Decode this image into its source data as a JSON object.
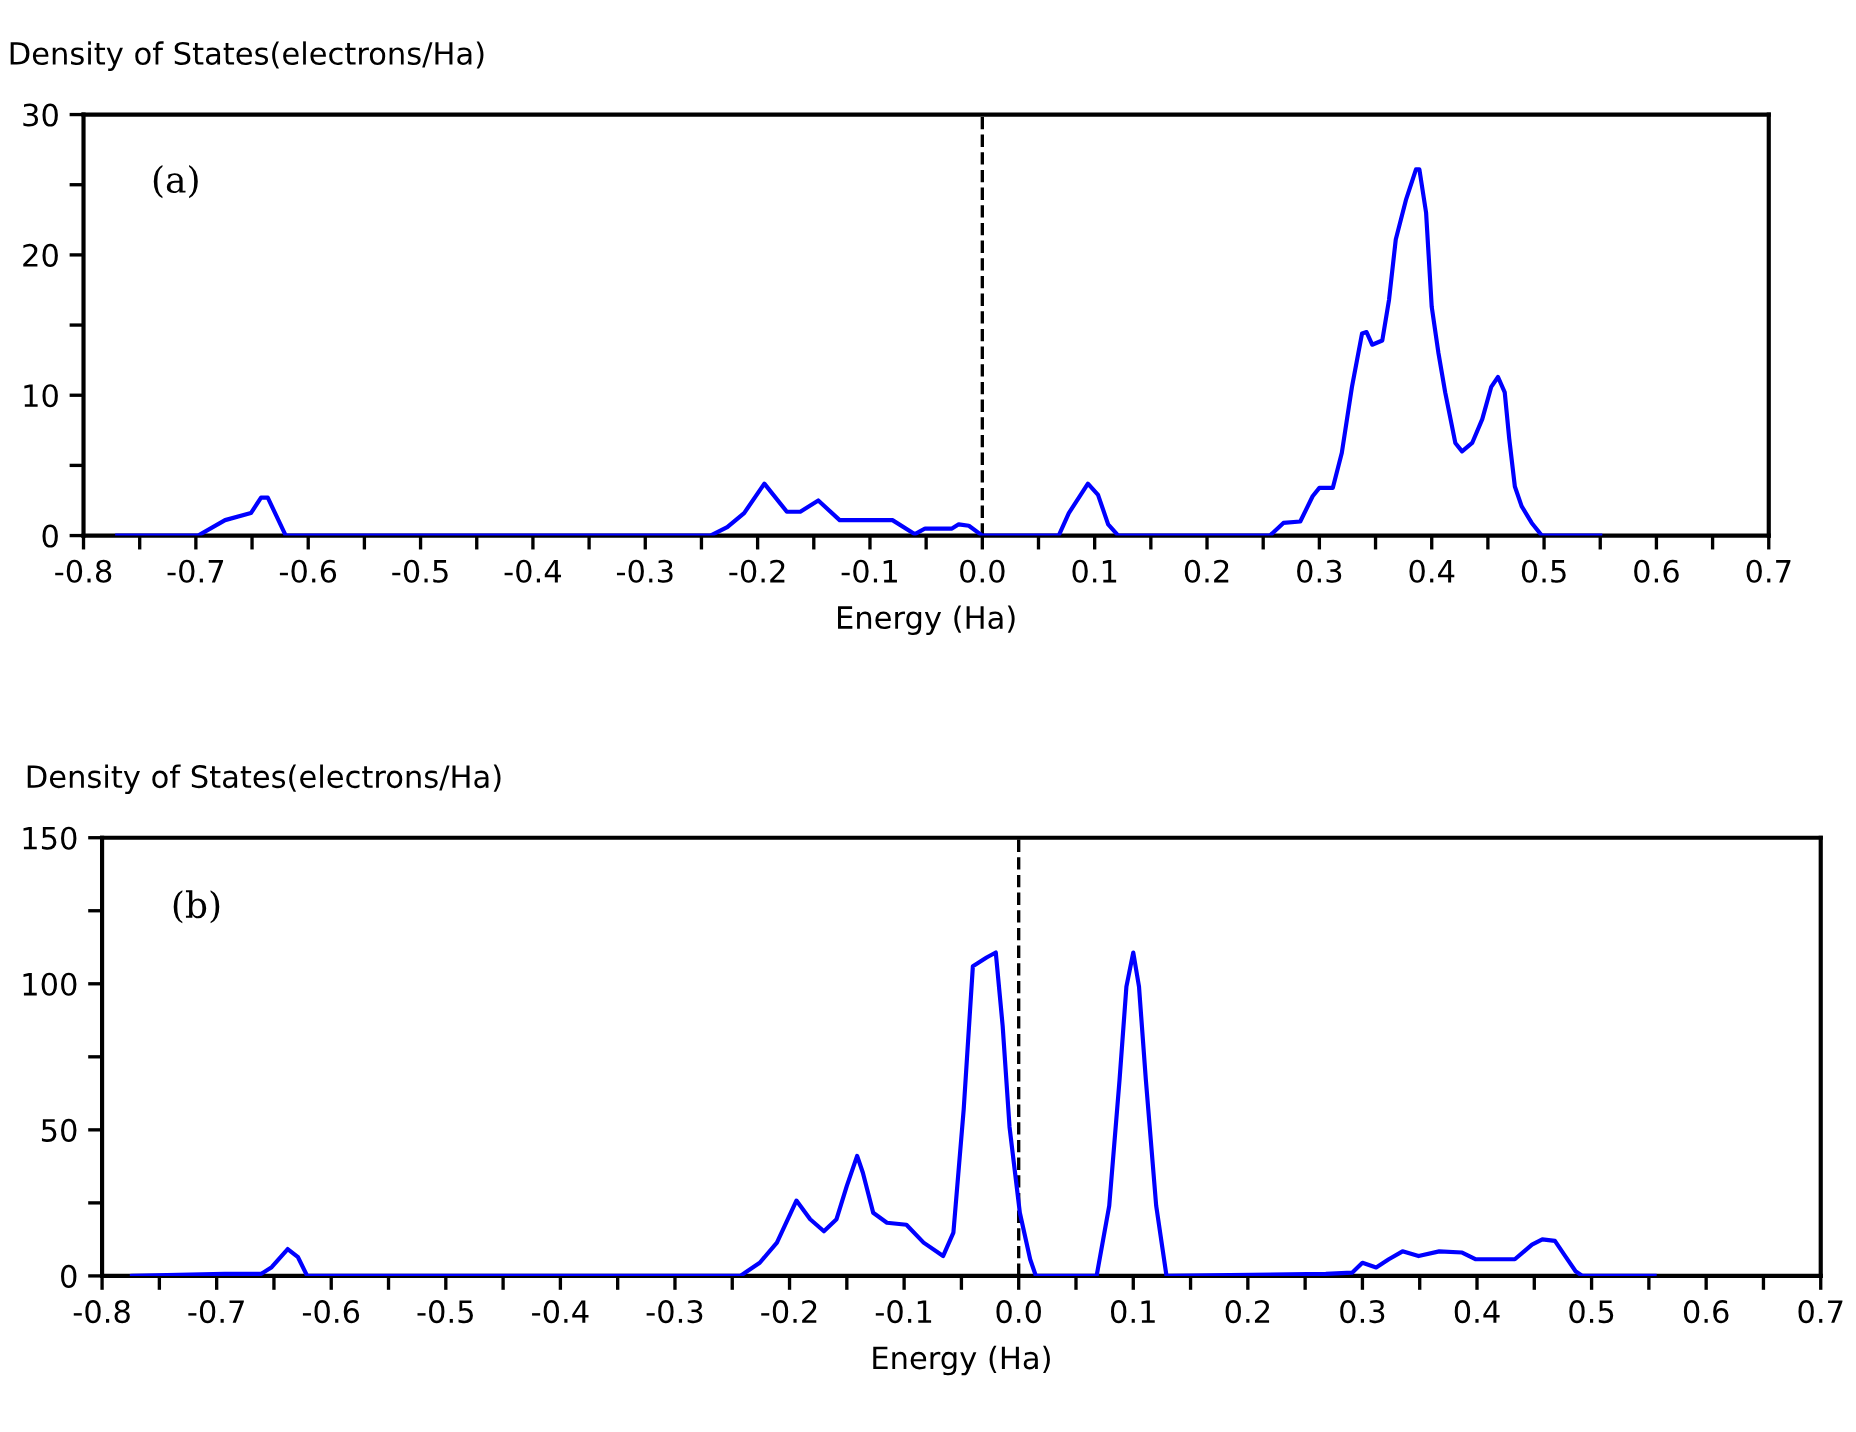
{
  "chart_data": [
    {
      "type": "line",
      "title": "Density of States(electrons/Ha)",
      "xlabel": "Energy (Ha)",
      "annotations": [
        "(a)"
      ],
      "series": [
        {
          "color": "#0000ff",
          "x": [
            -0.77,
            -0.698,
            -0.674,
            -0.651,
            -0.642,
            -0.636,
            -0.62,
            -0.242,
            -0.227,
            -0.212,
            -0.194,
            -0.174,
            -0.162,
            -0.146,
            -0.127,
            -0.08,
            -0.06,
            -0.051,
            -0.027,
            -0.021,
            -0.012,
            0.0,
            0.068,
            0.077,
            0.094,
            0.103,
            0.112,
            0.121,
            0.256,
            0.268,
            0.283,
            0.294,
            0.3,
            0.312,
            0.32,
            0.329,
            0.338,
            0.342,
            0.347,
            0.356,
            0.362,
            0.368,
            0.377,
            0.386,
            0.389,
            0.395,
            0.4,
            0.406,
            0.412,
            0.421,
            0.427,
            0.436,
            0.445,
            0.453,
            0.459,
            0.465,
            0.469,
            0.474,
            0.48,
            0.489,
            0.498,
            0.55
          ],
          "values": [
            0,
            0,
            1.1,
            1.6,
            2.7,
            2.7,
            0,
            0,
            0.6,
            1.6,
            3.7,
            1.7,
            1.7,
            2.5,
            1.1,
            1.1,
            0.1,
            0.5,
            0.5,
            0.8,
            0.7,
            0,
            0,
            1.6,
            3.7,
            2.9,
            0.8,
            0,
            0,
            0.9,
            1.0,
            2.8,
            3.4,
            3.4,
            5.9,
            10.6,
            14.4,
            14.5,
            13.6,
            13.9,
            16.8,
            21.1,
            23.9,
            26.1,
            26.1,
            23.0,
            16.3,
            13.0,
            10.2,
            6.6,
            6.0,
            6.6,
            8.3,
            10.6,
            11.3,
            10.2,
            6.9,
            3.5,
            2.1,
            0.9,
            0,
            0
          ]
        }
      ],
      "xlim": [
        -0.8,
        0.7
      ],
      "ylim": [
        0,
        30
      ],
      "xticks": [
        -0.8,
        {
          "value": -0.75,
          "label": null
        },
        -0.7,
        {
          "value": -0.65,
          "label": null
        },
        -0.6,
        {
          "value": -0.55,
          "label": null
        },
        -0.5,
        {
          "value": -0.45,
          "label": null
        },
        -0.4,
        {
          "value": -0.35,
          "label": null
        },
        -0.3,
        {
          "value": -0.25,
          "label": null
        },
        -0.2,
        {
          "value": -0.15,
          "label": null
        },
        -0.1,
        {
          "value": -0.05,
          "label": null
        },
        {
          "value": 0,
          "label": "0.0"
        },
        {
          "value": 0.05,
          "label": null
        },
        0.1,
        {
          "value": 0.15,
          "label": null
        },
        0.2,
        {
          "value": 0.25,
          "label": null
        },
        0.3,
        {
          "value": 0.35,
          "label": null
        },
        0.4,
        {
          "value": 0.45,
          "label": null
        },
        0.5,
        {
          "value": 0.55,
          "label": null
        },
        0.6,
        {
          "value": 0.65,
          "label": null
        },
        0.7
      ],
      "yticks": [
        0,
        {
          "value": 5,
          "label": null
        },
        10,
        {
          "value": 15,
          "label": null
        },
        20,
        {
          "value": 25,
          "label": null
        },
        30
      ],
      "ref_lines": [
        {
          "axis": "x",
          "value": 0,
          "line_style": "dashed",
          "color": "#000000"
        }
      ],
      "grid": false,
      "legend": false,
      "marker": "none",
      "line_style": "solid"
    },
    {
      "type": "line",
      "title": "Density of States(electrons/Ha)",
      "xlabel": "Energy (Ha)",
      "annotations": [
        "(b)"
      ],
      "series": [
        {
          "color": "#0000ff",
          "x": [
            -0.774,
            -0.693,
            -0.661,
            -0.652,
            -0.638,
            -0.629,
            -0.621,
            -0.243,
            -0.226,
            -0.211,
            -0.194,
            -0.182,
            -0.17,
            -0.159,
            -0.15,
            -0.141,
            -0.136,
            -0.127,
            -0.115,
            -0.098,
            -0.083,
            -0.066,
            -0.057,
            -0.048,
            -0.04,
            -0.028,
            -0.02,
            -0.014,
            -0.008,
            0.001,
            0.01,
            0.015,
            0.068,
            0.079,
            0.088,
            0.094,
            0.1,
            0.105,
            0.111,
            0.12,
            0.129,
            0.268,
            0.291,
            0.3,
            0.312,
            0.323,
            0.335,
            0.349,
            0.367,
            0.387,
            0.399,
            0.433,
            0.448,
            0.457,
            0.468,
            0.477,
            0.486,
            0.492,
            0.555
          ],
          "values": [
            0,
            0.7,
            0.7,
            3,
            9.2,
            6.4,
            0,
            0,
            4.5,
            11.4,
            25.8,
            19.4,
            15.3,
            19.4,
            30.8,
            41.1,
            35.3,
            21.6,
            18.2,
            17.5,
            11.4,
            6.8,
            14.8,
            57,
            106,
            109,
            110.7,
            85.6,
            51,
            21.6,
            5.7,
            0,
            0,
            24,
            67,
            99,
            110.7,
            99,
            67,
            24,
            0,
            0.7,
            1.1,
            4.5,
            2.9,
            5.7,
            8.4,
            6.8,
            8.4,
            8.0,
            5.7,
            5.7,
            10.7,
            12.5,
            12,
            6.8,
            1.6,
            0,
            0
          ]
        }
      ],
      "xlim": [
        -0.8,
        0.7
      ],
      "ylim": [
        0,
        150
      ],
      "xticks": [
        -0.8,
        {
          "value": -0.75,
          "label": null
        },
        -0.7,
        {
          "value": -0.65,
          "label": null
        },
        -0.6,
        {
          "value": -0.55,
          "label": null
        },
        -0.5,
        {
          "value": -0.45,
          "label": null
        },
        -0.4,
        {
          "value": -0.35,
          "label": null
        },
        -0.3,
        {
          "value": -0.25,
          "label": null
        },
        -0.2,
        {
          "value": -0.15,
          "label": null
        },
        -0.1,
        {
          "value": -0.05,
          "label": null
        },
        {
          "value": 0,
          "label": "0.0"
        },
        {
          "value": 0.05,
          "label": null
        },
        0.1,
        {
          "value": 0.15,
          "label": null
        },
        0.2,
        {
          "value": 0.25,
          "label": null
        },
        0.3,
        {
          "value": 0.35,
          "label": null
        },
        0.4,
        {
          "value": 0.45,
          "label": null
        },
        0.5,
        {
          "value": 0.55,
          "label": null
        },
        0.6,
        {
          "value": 0.65,
          "label": null
        },
        0.7
      ],
      "yticks": [
        0,
        {
          "value": 25,
          "label": null
        },
        50,
        {
          "value": 75,
          "label": null
        },
        100,
        {
          "value": 125,
          "label": null
        },
        150
      ],
      "ref_lines": [
        {
          "axis": "x",
          "value": 0,
          "line_style": "dashed",
          "color": "#000000"
        }
      ],
      "grid": false,
      "legend": false,
      "marker": "none",
      "line_style": "solid"
    }
  ]
}
